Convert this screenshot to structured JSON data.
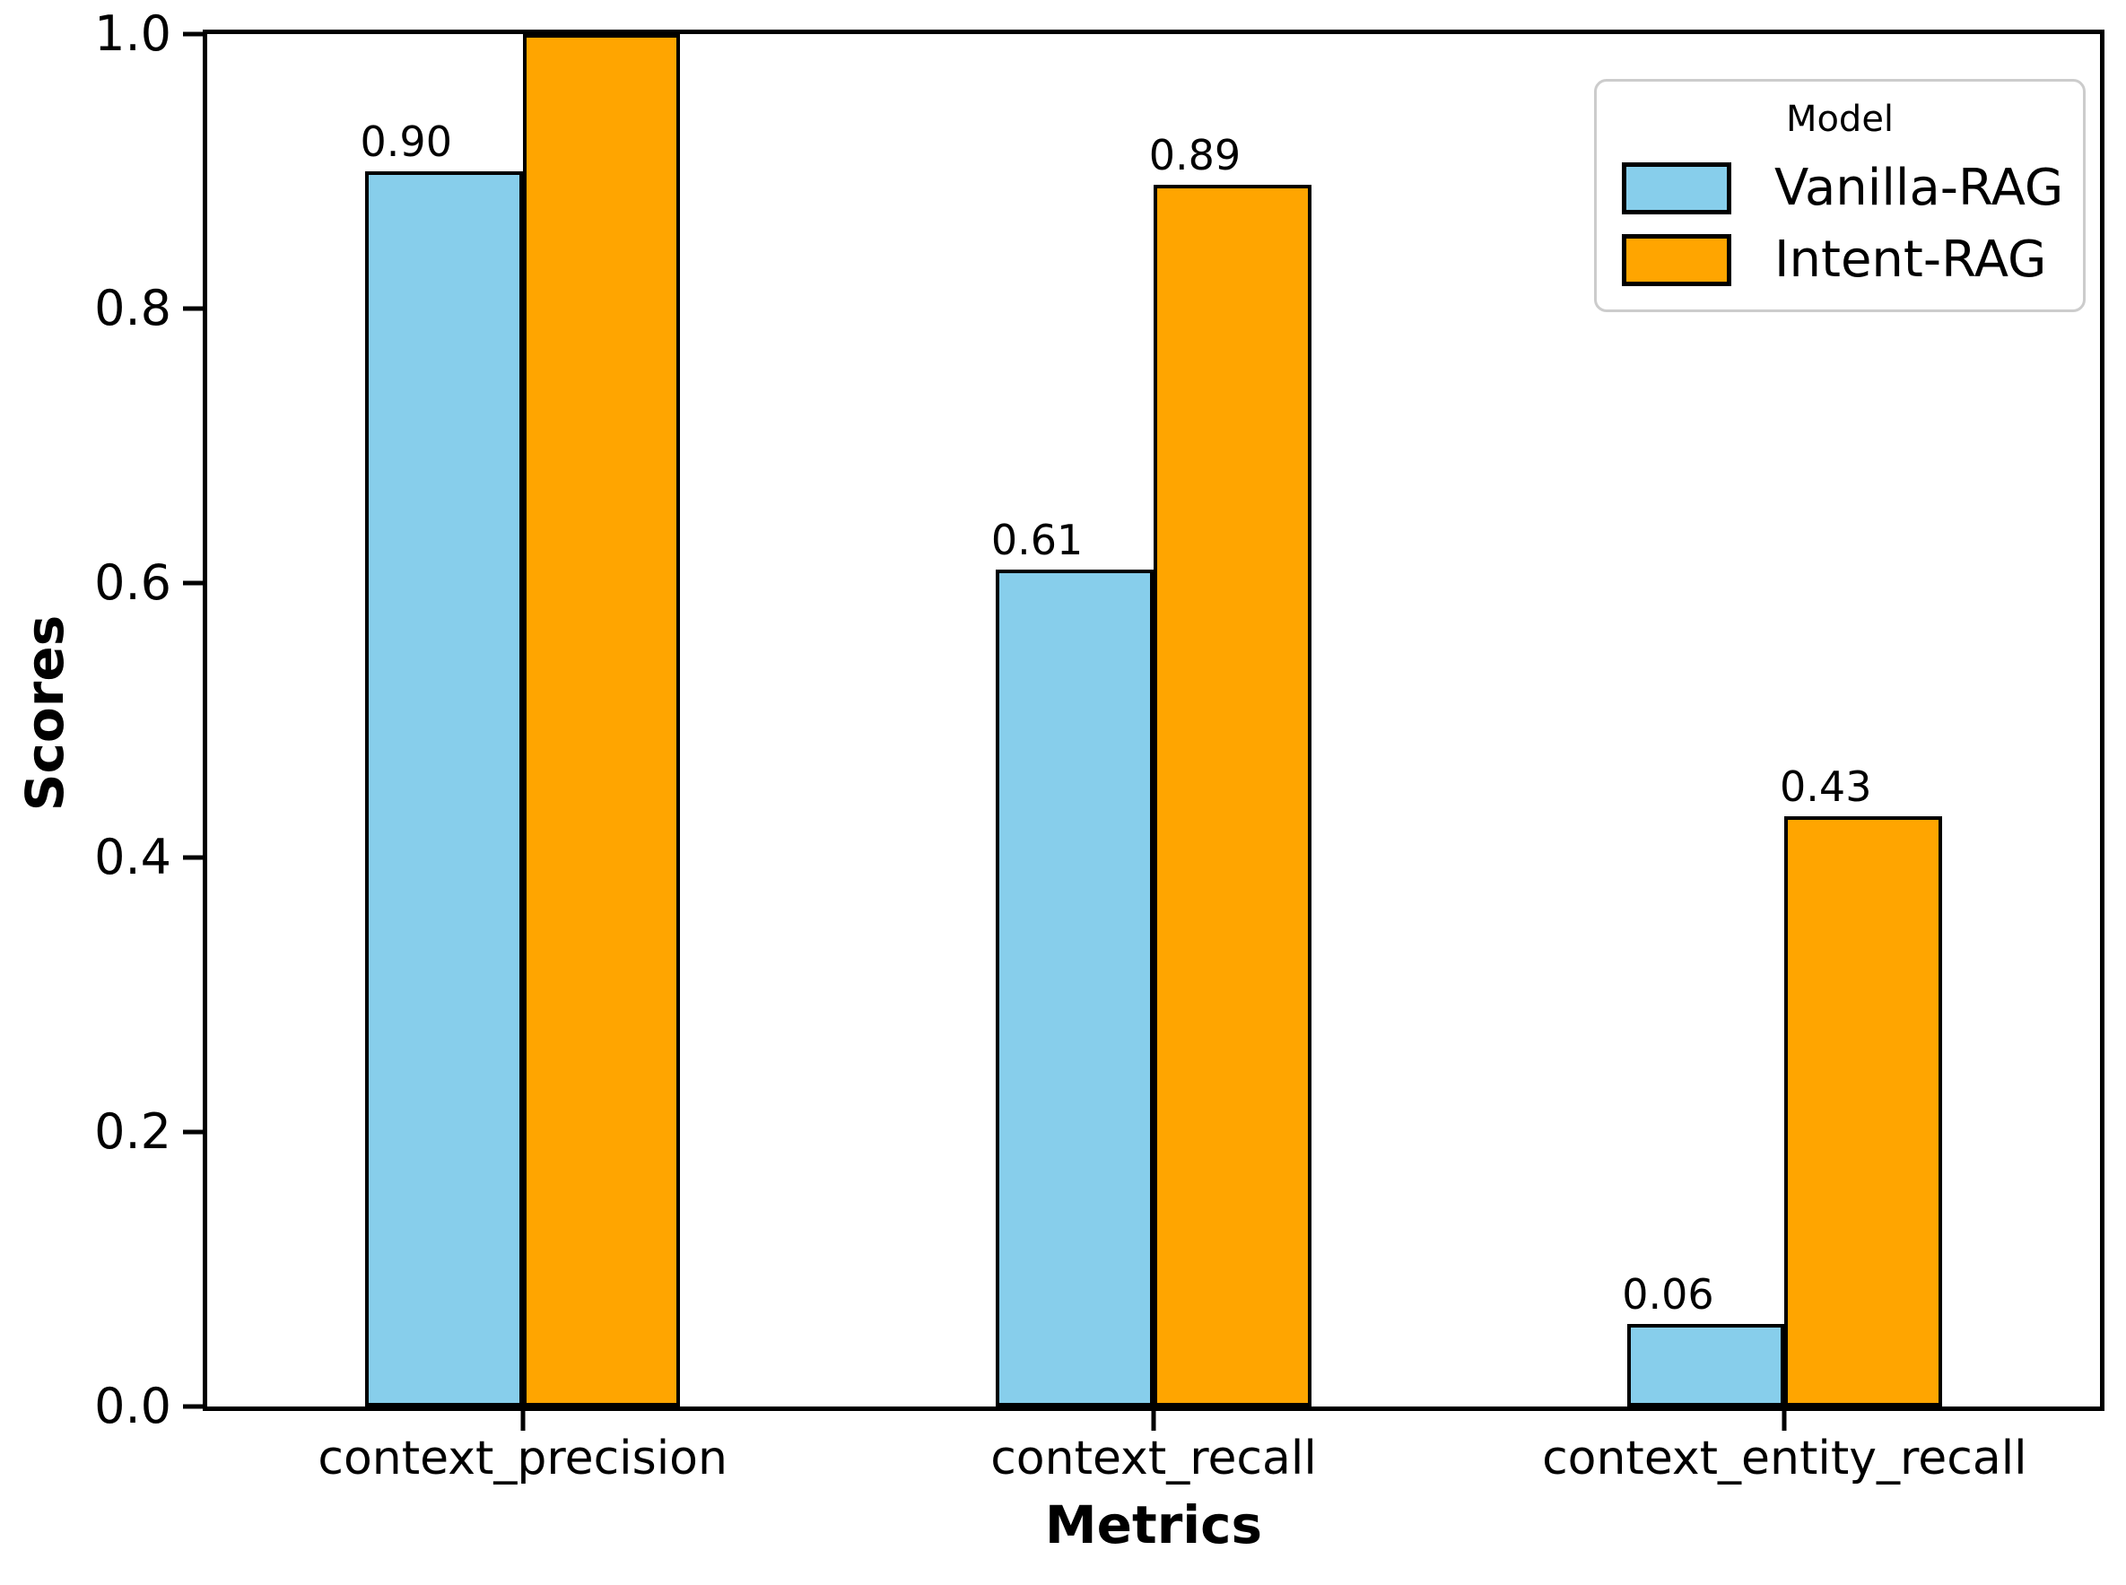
{
  "chart_data": {
    "type": "bar",
    "title": "",
    "xlabel": "Metrics",
    "ylabel": "Scores",
    "categories": [
      "context_precision",
      "context_recall",
      "context_entity_recall"
    ],
    "series": [
      {
        "name": "Vanilla-RAG",
        "color": "#87CEEB",
        "values": [
          0.9,
          0.61,
          0.06
        ],
        "bar_labels": [
          "0.90",
          "0.61",
          "0.06"
        ]
      },
      {
        "name": "Intent-RAG",
        "color": "#FFA500",
        "values": [
          1.0,
          0.89,
          0.43
        ],
        "bar_labels": [
          null,
          "0.89",
          "0.43"
        ]
      }
    ],
    "ylim": [
      0.0,
      1.0
    ],
    "yticks": [
      "0.0",
      "0.2",
      "0.4",
      "0.6",
      "0.8",
      "1.0"
    ],
    "grid": false,
    "bar_edge_color": "#000000",
    "legend": {
      "title": "Model",
      "position": "upper right"
    }
  }
}
